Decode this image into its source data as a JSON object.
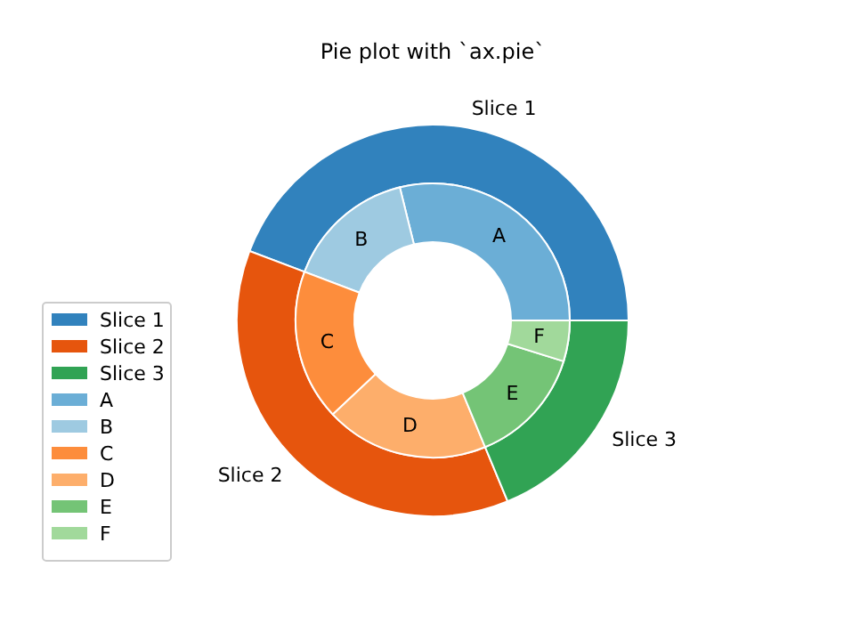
{
  "chart_data": [
    {
      "type": "donut",
      "title": "Pie plot with `ax.pie`",
      "legend": "bottom left",
      "categories": [
        "Slice 1",
        "Slice 2",
        "Slice 3"
      ],
      "values": [
        44.23,
        37.02,
        18.75
      ],
      "colors": [
        "#3182bd",
        "#e6550d",
        "#31a354"
      ]
    },
    {
      "type": "donut",
      "legend": "bottom left",
      "categories": [
        "A",
        "B",
        "C",
        "D",
        "E",
        "F"
      ],
      "values": [
        28.85,
        15.38,
        17.79,
        19.23,
        13.94,
        4.81
      ],
      "colors": [
        "#6baed6",
        "#9ecae1",
        "#fd8d3c",
        "#fdae6b",
        "#74c476",
        "#a1d99b"
      ]
    }
  ]
}
